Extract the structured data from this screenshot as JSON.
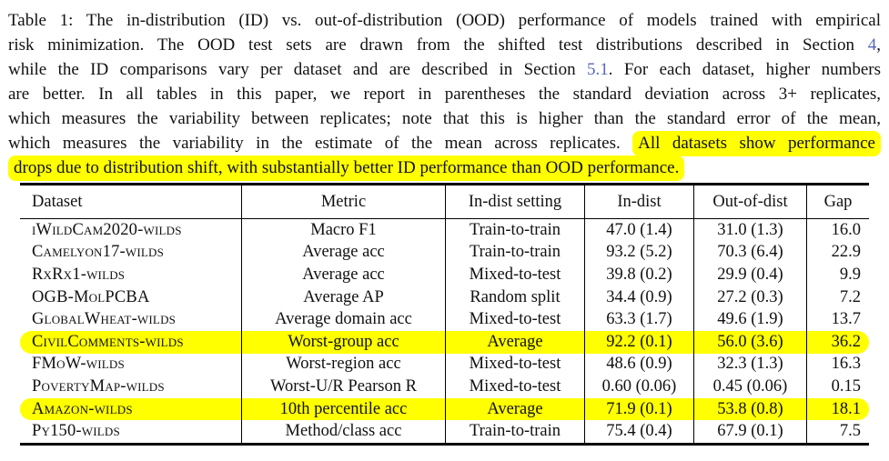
{
  "colors": {
    "highlight": "#ffff00",
    "link": "#5566bb",
    "text": "#111111",
    "background": "#ffffff"
  },
  "caption": {
    "lines": [
      {
        "pre": "Table 1: The in-distribution (ID) vs. out-of-distribution (OOD) performance of models trained with empirical"
      },
      {
        "pre": "risk minimization. The OOD test sets are drawn from the shifted test distributions described in Section ",
        "link": "4",
        "post": ","
      },
      {
        "pre": "while the ID comparisons vary per dataset and are described in Section ",
        "link": "5.1",
        "post": ". For each dataset, higher numbers"
      },
      {
        "pre": "are better. In all tables in this paper, we report in parentheses the standard deviation across 3+ replicates,"
      },
      {
        "pre": "which measures the variability between replicates; note that this is higher than the standard error of the mean,"
      },
      {
        "pre": "which measures the variability in the estimate of the mean across replicates. ",
        "highlight": "All datasets show performance"
      },
      {
        "highlight": "drops due to distribution shift, with substantially better ID performance than OOD performance."
      }
    ]
  },
  "table": {
    "headers": {
      "dataset": "Dataset",
      "metric": "Metric",
      "setting": "In-dist setting",
      "in_dist": "In-dist",
      "out_dist": "Out-of-dist",
      "gap": "Gap"
    },
    "rows": [
      {
        "dataset": "iWildCam2020-wilds",
        "metric": "Macro F1",
        "setting": "Train-to-train",
        "in_dist": "47.0 (1.4)",
        "out_dist": "31.0 (1.3)",
        "gap": "16.0",
        "highlighted": false
      },
      {
        "dataset": "Camelyon17-wilds",
        "metric": "Average acc",
        "setting": "Train-to-train",
        "in_dist": "93.2 (5.2)",
        "out_dist": "70.3 (6.4)",
        "gap": "22.9",
        "highlighted": false
      },
      {
        "dataset": "RxRx1-wilds",
        "metric": "Average acc",
        "setting": "Mixed-to-test",
        "in_dist": "39.8 (0.2)",
        "out_dist": "29.9 (0.4)",
        "gap": "9.9",
        "highlighted": false
      },
      {
        "dataset": "OGB-MolPCBA",
        "metric": "Average AP",
        "setting": "Random split",
        "in_dist": "34.4 (0.9)",
        "out_dist": "27.2 (0.3)",
        "gap": "7.2",
        "highlighted": false
      },
      {
        "dataset": "GlobalWheat-wilds",
        "metric": "Average domain acc",
        "setting": "Mixed-to-test",
        "in_dist": "63.3 (1.7)",
        "out_dist": "49.6 (1.9)",
        "gap": "13.7",
        "highlighted": false
      },
      {
        "dataset": "CivilComments-wilds",
        "metric": "Worst-group acc",
        "setting": "Average",
        "in_dist": "92.2 (0.1)",
        "out_dist": "56.0 (3.6)",
        "gap": "36.2",
        "highlighted": true
      },
      {
        "dataset": "FMoW-wilds",
        "metric": "Worst-region acc",
        "setting": "Mixed-to-test",
        "in_dist": "48.6 (0.9)",
        "out_dist": "32.3 (1.3)",
        "gap": "16.3",
        "highlighted": false
      },
      {
        "dataset": "PovertyMap-wilds",
        "metric": "Worst-U/R Pearson R",
        "setting": "Mixed-to-test",
        "in_dist": "0.60 (0.06)",
        "out_dist": "0.45 (0.06)",
        "gap": "0.15",
        "highlighted": false
      },
      {
        "dataset": "Amazon-wilds",
        "metric": "10th percentile acc",
        "setting": "Average",
        "in_dist": "71.9 (0.1)",
        "out_dist": "53.8 (0.8)",
        "gap": "18.1",
        "highlighted": true
      },
      {
        "dataset": "Py150-wilds",
        "metric": "Method/class acc",
        "setting": "Train-to-train",
        "in_dist": "75.4 (0.4)",
        "out_dist": "67.9 (0.1)",
        "gap": "7.5",
        "highlighted": false
      }
    ]
  }
}
